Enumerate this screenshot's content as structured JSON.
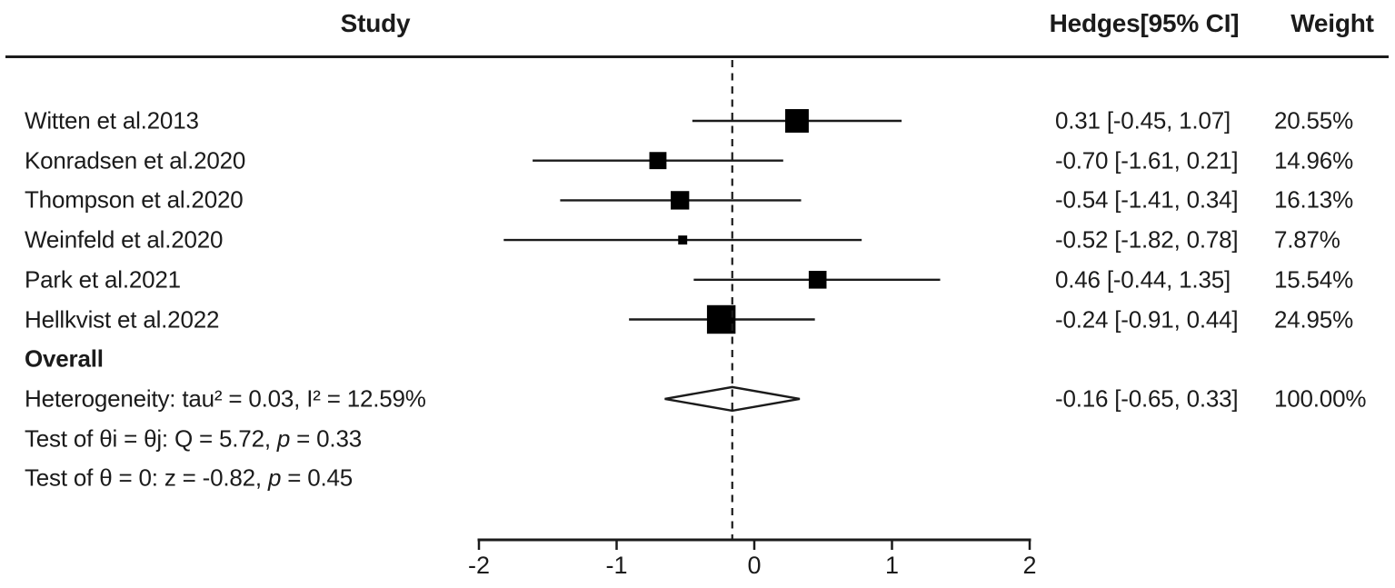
{
  "header": {
    "study_label": "Study",
    "effect_label": "Hedges[95% CI]",
    "weight_label": "Weight"
  },
  "colors": {
    "marker": "#000000",
    "line": "#1b1b1b",
    "text": "#1b1b1b",
    "diamond_fill": "#ffffff",
    "background": "#ffffff"
  },
  "chart_data": {
    "type": "forest",
    "effect_measure": "Hedges g",
    "xlim": [
      -2,
      2
    ],
    "x_ticks": [
      -2,
      -1,
      0,
      1,
      2
    ],
    "reference_line_x": -0.16,
    "rows": [
      {
        "kind": "study",
        "label": "Witten et al.2013",
        "effect": 0.31,
        "ci_low": -0.45,
        "ci_high": 1.07,
        "weight_pct": 20.55,
        "effect_text": "0.31 [-0.45, 1.07]",
        "weight_text": "20.55%"
      },
      {
        "kind": "study",
        "label": "Konradsen et al.2020",
        "effect": -0.7,
        "ci_low": -1.61,
        "ci_high": 0.21,
        "weight_pct": 14.96,
        "effect_text": "-0.70 [-1.61, 0.21]",
        "weight_text": "14.96%"
      },
      {
        "kind": "study",
        "label": "Thompson et al.2020",
        "effect": -0.54,
        "ci_low": -1.41,
        "ci_high": 0.34,
        "weight_pct": 16.13,
        "effect_text": "-0.54 [-1.41, 0.34]",
        "weight_text": "16.13%"
      },
      {
        "kind": "study",
        "label": "Weinfeld et al.2020",
        "effect": -0.52,
        "ci_low": -1.82,
        "ci_high": 0.78,
        "weight_pct": 7.87,
        "effect_text": "-0.52 [-1.82, 0.78]",
        "weight_text": "7.87%"
      },
      {
        "kind": "study",
        "label": "Park et al.2021",
        "effect": 0.46,
        "ci_low": -0.44,
        "ci_high": 1.35,
        "weight_pct": 15.54,
        "effect_text": "0.46 [-0.44, 1.35]",
        "weight_text": "15.54%"
      },
      {
        "kind": "study",
        "label": "Hellkvist et al.2022",
        "effect": -0.24,
        "ci_low": -0.91,
        "ci_high": 0.44,
        "weight_pct": 24.95,
        "effect_text": "-0.24 [-0.91, 0.44]",
        "weight_text": "24.95%"
      },
      {
        "kind": "section",
        "bold": true,
        "segments": [
          {
            "text": "Overall"
          }
        ]
      },
      {
        "kind": "overall",
        "effect": -0.16,
        "ci_low": -0.65,
        "ci_high": 0.33,
        "effect_text": "-0.16 [-0.65, 0.33]",
        "weight_text": "100.00%",
        "segments": [
          {
            "text": "Heterogeneity: tau² = 0.03, I² = 12.59%"
          }
        ]
      },
      {
        "kind": "note",
        "segments": [
          {
            "text": "Test of θi = θj: Q = 5.72, "
          },
          {
            "text": "p",
            "italic": true
          },
          {
            "text": " = 0.33"
          }
        ]
      },
      {
        "kind": "note",
        "segments": [
          {
            "text": "Test of θ = 0: z = -0.82, "
          },
          {
            "text": "p",
            "italic": true
          },
          {
            "text": " = 0.45"
          }
        ]
      }
    ]
  }
}
